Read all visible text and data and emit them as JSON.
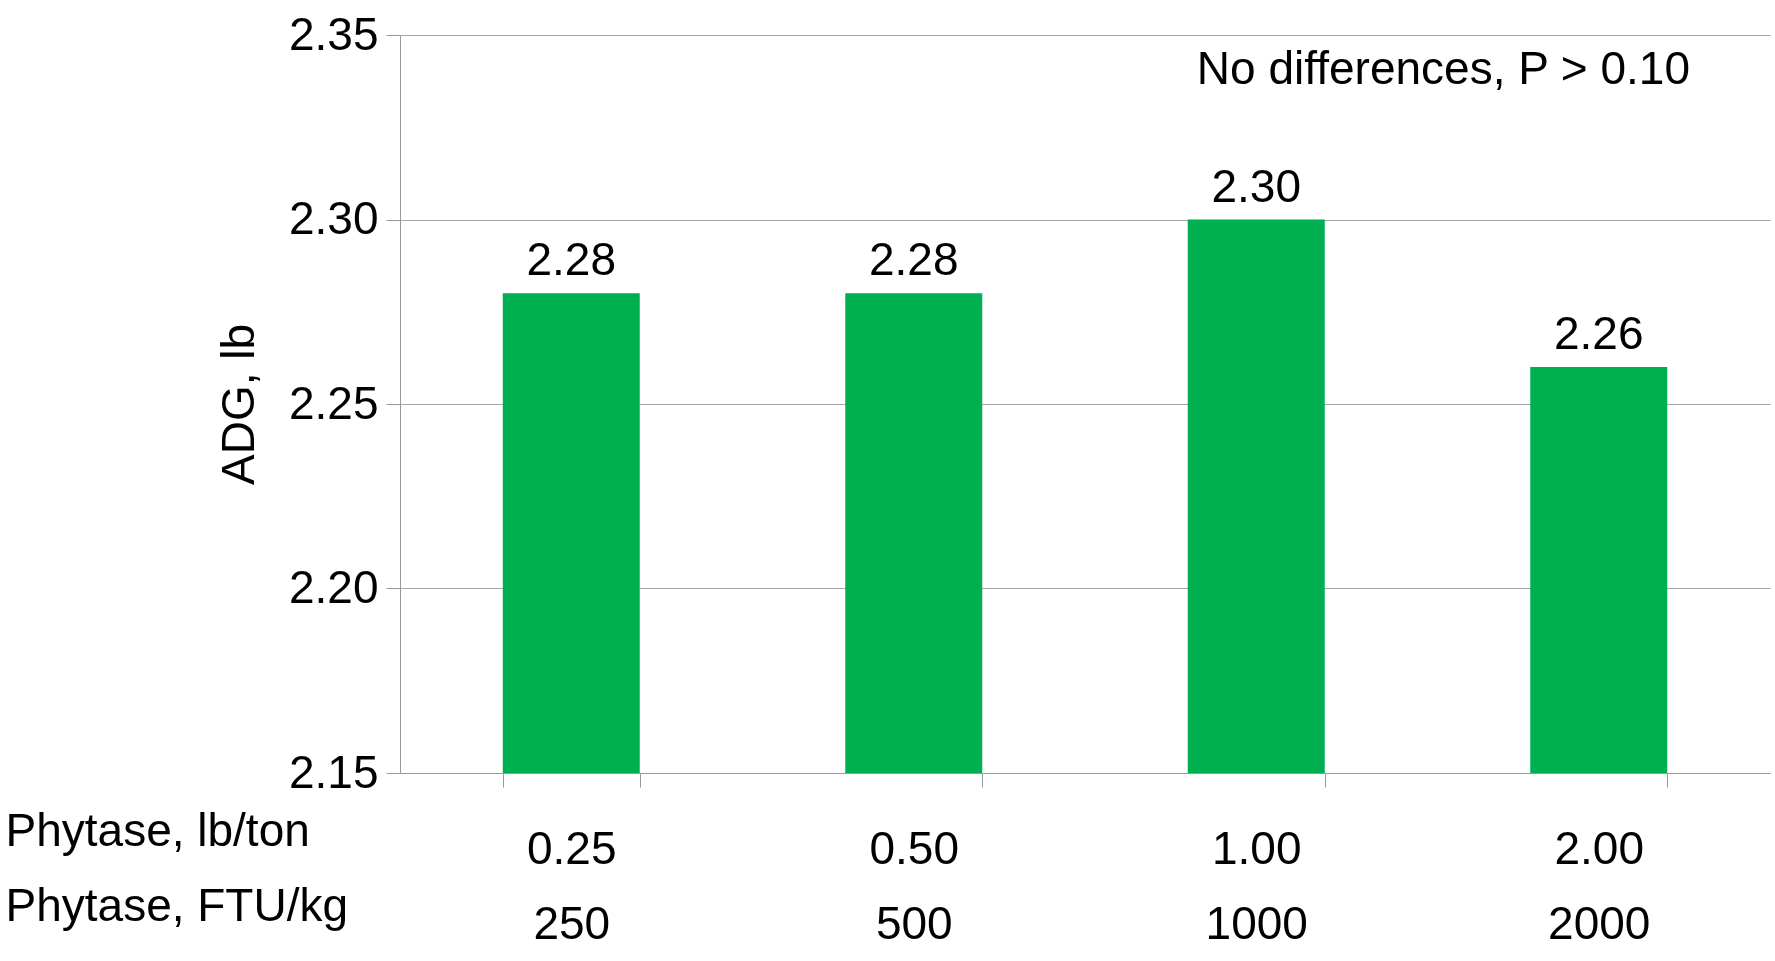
{
  "chart_data": {
    "type": "bar",
    "categories": [
      "0.25\n250",
      "0.50\n500",
      "1.00\n1000",
      "2.00\n2000"
    ],
    "values": [
      2.28,
      2.28,
      2.3,
      2.26
    ],
    "color": "#00b050",
    "xlabel": "Phytase, lb/ton\nPhytase, FTU/kg",
    "ylabel": "ADG, lb",
    "ylim": [
      2.15,
      2.35
    ],
    "yticks": [
      2.15,
      {
        "value": 2.2,
        "label": "2.20"
      },
      2.25,
      {
        "value": 2.3,
        "label": "2.30"
      },
      2.35
    ],
    "grid": "y",
    "value_labels": [
      "2.28",
      "2.28",
      "2.30",
      "2.26"
    ],
    "annotations": [
      "No differences, P > 0.10"
    ]
  }
}
